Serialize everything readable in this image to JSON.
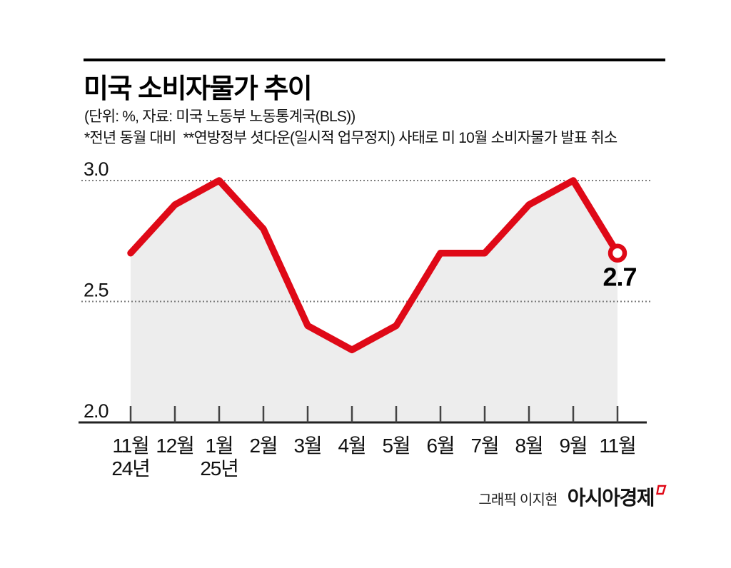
{
  "header": {
    "title": "미국 소비자물가 추이",
    "subtitle": "(단위: %, 자료: 미국 노동부 노동통계국(BLS))",
    "note": "*전년 동월 대비  **연방정부 셧다운(일시적 업무정지) 사태로 미 10월 소비자물가 발표 취소"
  },
  "chart_data": {
    "type": "line",
    "title": "미국 소비자물가 추이",
    "unit": "%",
    "source": "미국 노동부 노동통계국(BLS)",
    "categories": [
      "11월",
      "12월",
      "1월",
      "2월",
      "3월",
      "4월",
      "5월",
      "6월",
      "7월",
      "8월",
      "9월",
      "11월"
    ],
    "year_labels": [
      {
        "index": 0,
        "label": "24년"
      },
      {
        "index": 2,
        "label": "25년"
      }
    ],
    "values": [
      2.7,
      2.9,
      3.0,
      2.8,
      2.4,
      2.3,
      2.4,
      2.7,
      2.7,
      2.9,
      3.0,
      2.7
    ],
    "ylim": [
      2.0,
      3.0
    ],
    "yticks": [
      2.0,
      2.5,
      3.0
    ],
    "ytick_labels": [
      "2.0",
      "2.5",
      "3.0"
    ],
    "gridlines": [
      2.5,
      3.0
    ],
    "grid_on": true,
    "last_point_label": "2.7",
    "line_color": "#df0917",
    "area_color": "#ededed",
    "grid_color": "#7d7d7d",
    "axis_color": "#222222",
    "marker": "open-circle"
  },
  "footer": {
    "credit": "그래픽 이지현",
    "logo_text": "아시아경제"
  },
  "colors": {
    "accent_red": "#df0917",
    "area_gray": "#ededed",
    "text_dark": "#111111"
  }
}
